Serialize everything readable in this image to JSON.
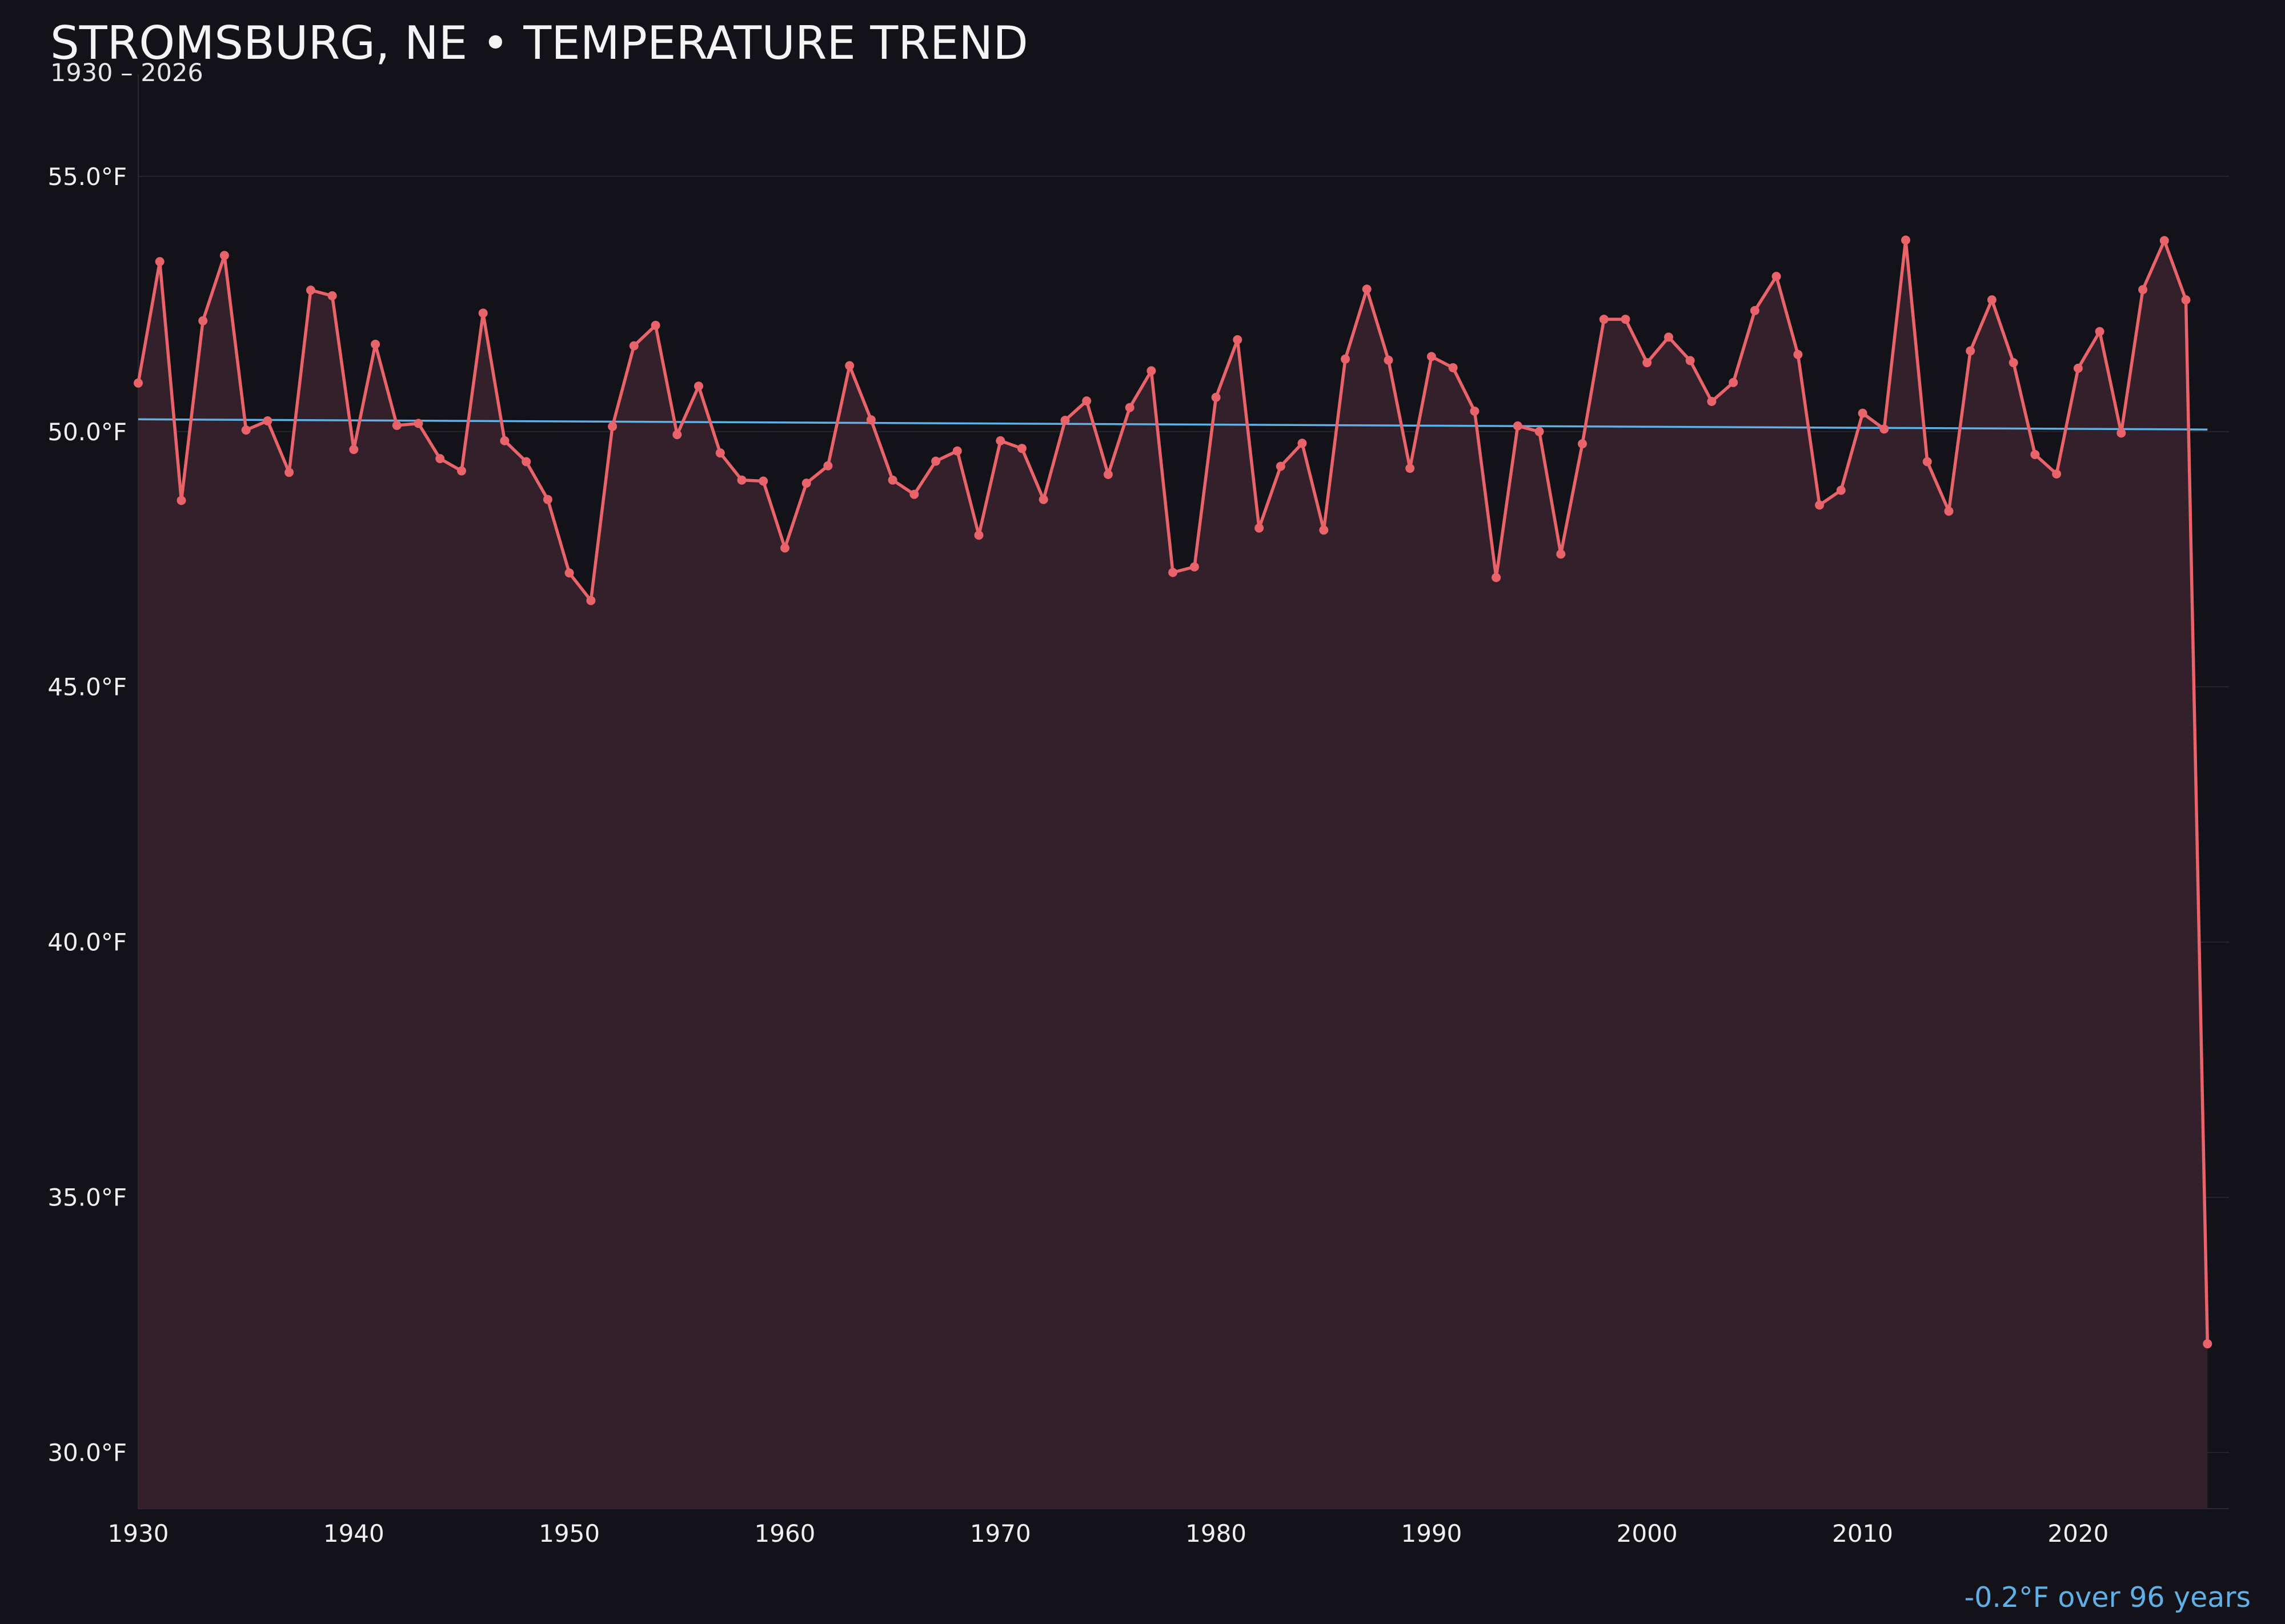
{
  "chart_data": {
    "type": "line",
    "title": "STROMSBURG, NE • TEMPERATURE TREND",
    "subtitle": "1930 – 2026",
    "xlabel": "",
    "ylabel": "",
    "xlim": [
      1930,
      2027
    ],
    "ylim": [
      28.9,
      57.0
    ],
    "x_ticks": [
      1930,
      1940,
      1950,
      1960,
      1970,
      1980,
      1990,
      2000,
      2010,
      2020
    ],
    "x_tick_labels": [
      "1930",
      "1940",
      "1950",
      "1960",
      "1970",
      "1980",
      "1990",
      "2000",
      "2010",
      "2020"
    ],
    "y_ticks": [
      30,
      35,
      40,
      45,
      50,
      55
    ],
    "y_tick_labels": [
      "30.0°F",
      "35.0°F",
      "40.0°F",
      "45.0°F",
      "50.0°F",
      "55.0°F"
    ],
    "grid": true,
    "series": [
      {
        "color": "#e8636a",
        "fill": "#34202a",
        "x": [
          1930,
          1931,
          1932,
          1933,
          1934,
          1935,
          1936,
          1937,
          1938,
          1939,
          1940,
          1941,
          1942,
          1943,
          1944,
          1945,
          1946,
          1947,
          1948,
          1949,
          1950,
          1951,
          1952,
          1953,
          1954,
          1955,
          1956,
          1957,
          1958,
          1959,
          1960,
          1961,
          1962,
          1963,
          1964,
          1965,
          1966,
          1967,
          1968,
          1969,
          1970,
          1971,
          1972,
          1973,
          1974,
          1975,
          1976,
          1977,
          1978,
          1979,
          1980,
          1981,
          1982,
          1983,
          1984,
          1985,
          1986,
          1987,
          1988,
          1989,
          1990,
          1991,
          1992,
          1993,
          1994,
          1995,
          1996,
          1997,
          1998,
          1999,
          2000,
          2001,
          2002,
          2003,
          2004,
          2005,
          2006,
          2007,
          2008,
          2009,
          2010,
          2011,
          2012,
          2013,
          2014,
          2015,
          2016,
          2017,
          2018,
          2019,
          2020,
          2021,
          2022,
          2023,
          2024,
          2025,
          2026
        ],
        "values": [
          50.95,
          53.33,
          48.65,
          52.17,
          53.45,
          50.03,
          50.21,
          49.2,
          52.77,
          52.66,
          49.65,
          51.71,
          50.12,
          50.16,
          49.47,
          49.23,
          52.32,
          49.82,
          49.41,
          48.67,
          47.23,
          46.69,
          50.1,
          51.68,
          52.08,
          49.94,
          50.89,
          49.58,
          49.05,
          49.03,
          47.72,
          48.99,
          49.33,
          51.29,
          50.23,
          49.05,
          48.77,
          49.42,
          49.62,
          47.97,
          49.82,
          49.67,
          48.67,
          50.22,
          50.6,
          49.16,
          50.47,
          51.19,
          47.24,
          47.35,
          50.67,
          51.8,
          48.11,
          49.32,
          49.77,
          48.07,
          51.42,
          52.79,
          51.4,
          49.28,
          51.47,
          51.25,
          50.4,
          47.14,
          50.11,
          50.0,
          47.6,
          49.76,
          52.2,
          52.2,
          51.35,
          51.85,
          51.39,
          50.59,
          50.96,
          52.37,
          53.04,
          51.51,
          48.56,
          48.85,
          50.36,
          50.05,
          53.75,
          49.41,
          48.44,
          51.58,
          52.58,
          51.35,
          49.55,
          49.17,
          51.24,
          51.96,
          49.97,
          52.78,
          53.74,
          52.58,
          32.13
        ]
      },
      {
        "color": "#5fb0e6",
        "x": [
          1930,
          2026
        ],
        "values": [
          50.24,
          50.04
        ]
      }
    ],
    "annotations": [
      "-0.2°F over 96 years"
    ]
  }
}
